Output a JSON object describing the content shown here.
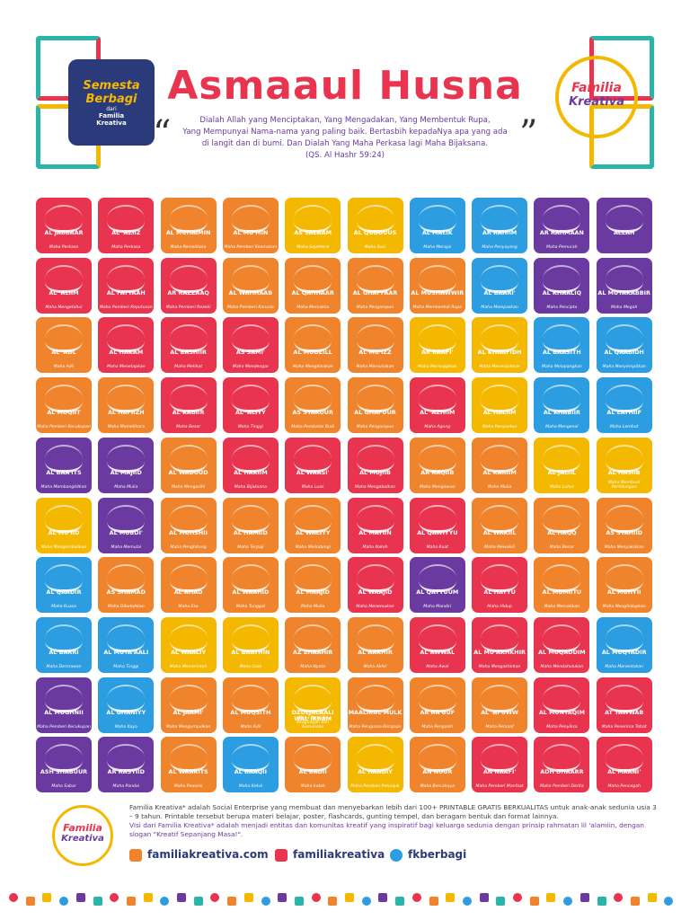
{
  "header": {
    "title": "Asmaaul Husna",
    "quote": [
      "Dialah Allah yang Menciptakan, Yang Mengadakan, Yang Membentuk Rupa,",
      "Yang Mempunyai Nama-nama yang paling baik. Bertasbih kepadaNya apa yang ada",
      "di langit dan di bumi. Dan Dialah Yang Maha Perkasa lagi Maha Bijaksana.",
      "(QS. Al Hashr 59:24)"
    ],
    "left_logo": [
      "Semesta",
      "Berbagi",
      "dari",
      "Familia",
      "Kreativa"
    ],
    "right_logo": [
      "Familia",
      "Kreativa"
    ]
  },
  "tiles": [
    {
      "name": "AL JABBAAR",
      "meaning": "Maha Perkasa",
      "color": "#e8344e"
    },
    {
      "name": "AL 'AZIIZ",
      "meaning": "Maha Perkasa",
      "color": "#e8344e"
    },
    {
      "name": "AL MUHAIMIN",
      "meaning": "Maha Pemelihara",
      "color": "#f0842c"
    },
    {
      "name": "AL MU'MIN",
      "meaning": "Maha Pemberi Keamanan",
      "color": "#f0842c"
    },
    {
      "name": "AS SALAAM",
      "meaning": "Maha Sejahtera",
      "color": "#f5b800"
    },
    {
      "name": "AL QUDDUUS",
      "meaning": "Maha Suci",
      "color": "#f5b800"
    },
    {
      "name": "AL MALIK",
      "meaning": "Maha Merajai",
      "color": "#2b9de0"
    },
    {
      "name": "AR RAHIIM",
      "meaning": "Maha Penyayang",
      "color": "#2b9de0"
    },
    {
      "name": "AR RAHMAAN",
      "meaning": "Maha Pemurah",
      "color": "#6a3aa0"
    },
    {
      "name": "ALLAH",
      "meaning": "",
      "color": "#6a3aa0"
    },
    {
      "name": "AL 'ALIIM",
      "meaning": "Maha Mengetahui",
      "color": "#e8344e"
    },
    {
      "name": "AL FATTAAH",
      "meaning": "Maha Pemberi Keputusan",
      "color": "#e8344e"
    },
    {
      "name": "AR RAZZAAQ",
      "meaning": "Maha Pemberi Rezeki",
      "color": "#e8344e"
    },
    {
      "name": "AL WAHHAAB",
      "meaning": "Maha Pemberi Karunia",
      "color": "#f0842c"
    },
    {
      "name": "AL QAHHAAR",
      "meaning": "Maha Memaksa",
      "color": "#f0842c"
    },
    {
      "name": "AL GHAFFAAR",
      "meaning": "Maha Pengampun",
      "color": "#f0842c"
    },
    {
      "name": "AL MUSHAWWIR",
      "meaning": "Maha Membentuk Rupa",
      "color": "#f0842c"
    },
    {
      "name": "AL BAARI'",
      "meaning": "Maha Melepaskan",
      "color": "#2b9de0"
    },
    {
      "name": "AL KHAALIQ",
      "meaning": "Maha Pencipta",
      "color": "#6a3aa0"
    },
    {
      "name": "AL MUTAKABBIR",
      "meaning": "Maha Megah",
      "color": "#6a3aa0"
    },
    {
      "name": "AL 'ADL",
      "meaning": "Maha Adil",
      "color": "#f0842c"
    },
    {
      "name": "AL HAKAM",
      "meaning": "Maha Menetapkan",
      "color": "#e8344e"
    },
    {
      "name": "AL BASHIIR",
      "meaning": "Maha Melihat",
      "color": "#e8344e"
    },
    {
      "name": "AS SAMI'",
      "meaning": "Maha Mendengar",
      "color": "#e8344e"
    },
    {
      "name": "AL MUDZILL",
      "meaning": "Maha Menghinakan",
      "color": "#f0842c"
    },
    {
      "name": "AL MU'IZZ",
      "meaning": "Maha Memuliakan",
      "color": "#f0842c"
    },
    {
      "name": "AR RAAFI'",
      "meaning": "Maha Meninggikan",
      "color": "#f5b800"
    },
    {
      "name": "AL KHAAFIDH",
      "meaning": "Maha Merendahkan",
      "color": "#f5b800"
    },
    {
      "name": "AL BAASITH",
      "meaning": "Maha Melapangkan",
      "color": "#2b9de0"
    },
    {
      "name": "AL QAABIDH",
      "meaning": "Maha Menyempitkan",
      "color": "#2b9de0"
    },
    {
      "name": "AL MUQIIT",
      "meaning": "Maha Pemberi Kecukupan",
      "color": "#f0842c"
    },
    {
      "name": "AL HAFIIZH",
      "meaning": "Maha Memelihara",
      "color": "#f0842c"
    },
    {
      "name": "AL KABIIR",
      "meaning": "Maha Besar",
      "color": "#e8344e"
    },
    {
      "name": "AL 'ALIYY",
      "meaning": "Maha Tinggi",
      "color": "#e8344e"
    },
    {
      "name": "AS SYAKUUR",
      "meaning": "Maha Pembalas Budi",
      "color": "#f0842c"
    },
    {
      "name": "AL GHAFUUR",
      "meaning": "Maha Pengampun",
      "color": "#f0842c"
    },
    {
      "name": "AL 'AZHIIM",
      "meaning": "Maha Agung",
      "color": "#e8344e"
    },
    {
      "name": "AL HALIIM",
      "meaning": "Maha Penyantun",
      "color": "#f5b800"
    },
    {
      "name": "AL KHABIIR",
      "meaning": "Maha Mengenal",
      "color": "#2b9de0"
    },
    {
      "name": "AL LATHIIF",
      "meaning": "Maha Lembut",
      "color": "#2b9de0"
    },
    {
      "name": "AL BAA'ITS",
      "meaning": "Maha Membangkitkan",
      "color": "#6a3aa0"
    },
    {
      "name": "AL MAJIID",
      "meaning": "Maha Mulia",
      "color": "#6a3aa0"
    },
    {
      "name": "AL WADUUD",
      "meaning": "Maha Mengasihi",
      "color": "#f0842c"
    },
    {
      "name": "AL HAKIIM",
      "meaning": "Maha Bijaksana",
      "color": "#e8344e"
    },
    {
      "name": "AL WAASI'",
      "meaning": "Maha Luas",
      "color": "#e8344e"
    },
    {
      "name": "AL MUJIIB",
      "meaning": "Maha Mengabulkan",
      "color": "#e8344e"
    },
    {
      "name": "AR RAQIIB",
      "meaning": "Maha Mengawasi",
      "color": "#f0842c"
    },
    {
      "name": "AL KARIIM",
      "meaning": "Maha Mulia",
      "color": "#f0842c"
    },
    {
      "name": "AL JALIIL",
      "meaning": "Maha Luhur",
      "color": "#f5b800"
    },
    {
      "name": "AL HASIIB",
      "meaning": "Maha Membuat Perhitungan",
      "color": "#f5b800"
    },
    {
      "name": "AL MU'IID",
      "meaning": "Maha Mengembalikan",
      "color": "#f5b800"
    },
    {
      "name": "AL MUBDI'",
      "meaning": "Maha Memulai",
      "color": "#6a3aa0"
    },
    {
      "name": "AL MUHSHII",
      "meaning": "Maha Penghitung",
      "color": "#f0842c"
    },
    {
      "name": "AL HAMIID",
      "meaning": "Maha Terpuji",
      "color": "#f0842c"
    },
    {
      "name": "AL WALIYY",
      "meaning": "Maha Melindungi",
      "color": "#f0842c"
    },
    {
      "name": "AL MATIIN",
      "meaning": "Maha Kokoh",
      "color": "#e8344e"
    },
    {
      "name": "AL QAWIYYU",
      "meaning": "Maha Kuat",
      "color": "#e8344e"
    },
    {
      "name": "AL WAKIIL",
      "meaning": "Maha Mewakili",
      "color": "#f0842c"
    },
    {
      "name": "AL HAQQ",
      "meaning": "Maha Benar",
      "color": "#f0842c"
    },
    {
      "name": "AS SYAHIID",
      "meaning": "Maha Menyaksikan",
      "color": "#f0842c"
    },
    {
      "name": "AL QAADIR",
      "meaning": "Maha Kuasa",
      "color": "#2b9de0"
    },
    {
      "name": "AS SHAMAD",
      "meaning": "Maha Dibutuhkan",
      "color": "#f0842c"
    },
    {
      "name": "AL AHAD",
      "meaning": "Maha Esa",
      "color": "#f0842c"
    },
    {
      "name": "AL WAAHID",
      "meaning": "Maha Tunggal",
      "color": "#f0842c"
    },
    {
      "name": "AL MAAJID",
      "meaning": "Maha Mulia",
      "color": "#f0842c"
    },
    {
      "name": "AL WAAJID",
      "meaning": "Maha Menemukan",
      "color": "#e8344e"
    },
    {
      "name": "AL QAYYUUM",
      "meaning": "Maha Mandiri",
      "color": "#6a3aa0"
    },
    {
      "name": "AL HAYYU",
      "meaning": "Maha Hidup",
      "color": "#e8344e"
    },
    {
      "name": "AL MUMIITU",
      "meaning": "Maha Mematikan",
      "color": "#f0842c"
    },
    {
      "name": "AL MUHYII",
      "meaning": "Maha Menghidupkan",
      "color": "#f0842c"
    },
    {
      "name": "AL BARRI",
      "meaning": "Maha Dermawan",
      "color": "#2b9de0"
    },
    {
      "name": "AL MUTA'AALI",
      "meaning": "Maha Tinggi",
      "color": "#2b9de0"
    },
    {
      "name": "AL WAALIY",
      "meaning": "Maha Memerintah",
      "color": "#f5b800"
    },
    {
      "name": "AL BAATHIN",
      "meaning": "Maha Gaib",
      "color": "#f5b800"
    },
    {
      "name": "AZ ZHAAHIR",
      "meaning": "Maha Nyata",
      "color": "#f0842c"
    },
    {
      "name": "AL AAKHIR",
      "meaning": "Maha Akhir",
      "color": "#f0842c"
    },
    {
      "name": "AL AWWAL",
      "meaning": "Maha Awal",
      "color": "#e8344e"
    },
    {
      "name": "AL MU'AKHKHIR",
      "meaning": "Maha Mengakhirkan",
      "color": "#e8344e"
    },
    {
      "name": "AL MUQADDIM",
      "meaning": "Maha Mendahulukan",
      "color": "#e8344e"
    },
    {
      "name": "AL MUQTADIR",
      "meaning": "Maha Menentukan",
      "color": "#2b9de0"
    },
    {
      "name": "AL MUGHNII",
      "meaning": "Maha Pemberi Kecukupan",
      "color": "#6a3aa0"
    },
    {
      "name": "AL GHANIYY",
      "meaning": "Maha Kaya",
      "color": "#2b9de0"
    },
    {
      "name": "AL JAAMI'",
      "meaning": "Maha Mengumpulkan",
      "color": "#f0842c"
    },
    {
      "name": "AL MUQSITH",
      "meaning": "Maha Adil",
      "color": "#f0842c"
    },
    {
      "name": "DZULJALAALI WAL IKRAM",
      "meaning": "Maha Memiliki Keagungan dan Kemuliaan",
      "color": "#f5b800"
    },
    {
      "name": "MAALIKUL MULK",
      "meaning": "Maha Penguasa Kerajaan",
      "color": "#f0842c"
    },
    {
      "name": "AR RA'UUF",
      "meaning": "Maha Pengasih",
      "color": "#f0842c"
    },
    {
      "name": "AL 'AFUWW",
      "meaning": "Maha Pemaaf",
      "color": "#f0842c"
    },
    {
      "name": "AL MUNTAQIM",
      "meaning": "Maha Penyiksa",
      "color": "#e8344e"
    },
    {
      "name": "AT TAWWAB",
      "meaning": "Maha Penerima Tobat",
      "color": "#e8344e"
    },
    {
      "name": "ASH SHABUUR",
      "meaning": "Maha Sabar",
      "color": "#6a3aa0"
    },
    {
      "name": "AR RASYIID",
      "meaning": "Maha Pandai",
      "color": "#6a3aa0"
    },
    {
      "name": "AL WAARITS",
      "meaning": "Maha Pewaris",
      "color": "#f0842c"
    },
    {
      "name": "AL BAAQII",
      "meaning": "Maha Kekal",
      "color": "#2b9de0"
    },
    {
      "name": "AL BADII",
      "meaning": "Maha Indah",
      "color": "#f0842c"
    },
    {
      "name": "AL HAADIY",
      "meaning": "Maha Pemberi Petunjuk",
      "color": "#f5b800"
    },
    {
      "name": "AN NUUR",
      "meaning": "Maha Bercahaya",
      "color": "#f0842c"
    },
    {
      "name": "AN NAAFI'",
      "meaning": "Maha Pemberi Manfaat",
      "color": "#e8344e"
    },
    {
      "name": "ADH DHAARR",
      "meaning": "Maha Pemberi Derita",
      "color": "#e8344e"
    },
    {
      "name": "AL MAANI'",
      "meaning": "Maha Pencegah",
      "color": "#e8344e"
    }
  ],
  "footer": {
    "paragraphs": [
      "Familia Kreativa* adalah Social Enterprise yang membuat dan menyebarkan lebih dari 100+ PRINTABLE GRATIS BERKUALITAS untuk anak-anak sedunia usia 3 – 9 tahun. Printable tersebut berupa materi belajar, poster, flashcards, gunting tempel, dan beragam bentuk dan format lainnya.",
      "Visi dari Familia Kreativa* adalah menjadi entitas dan komunitas kreatif yang inspiratif bagi keluarga sedunia dengan prinsip rahmatan lil 'alamiin, dengan slogan \"Kreatif Sepanjang Masa!\"."
    ],
    "logo": [
      "Familia",
      "Kreativa"
    ],
    "links": [
      "familiakreativa.com",
      "familiakreativa",
      "fkberbagi"
    ]
  }
}
